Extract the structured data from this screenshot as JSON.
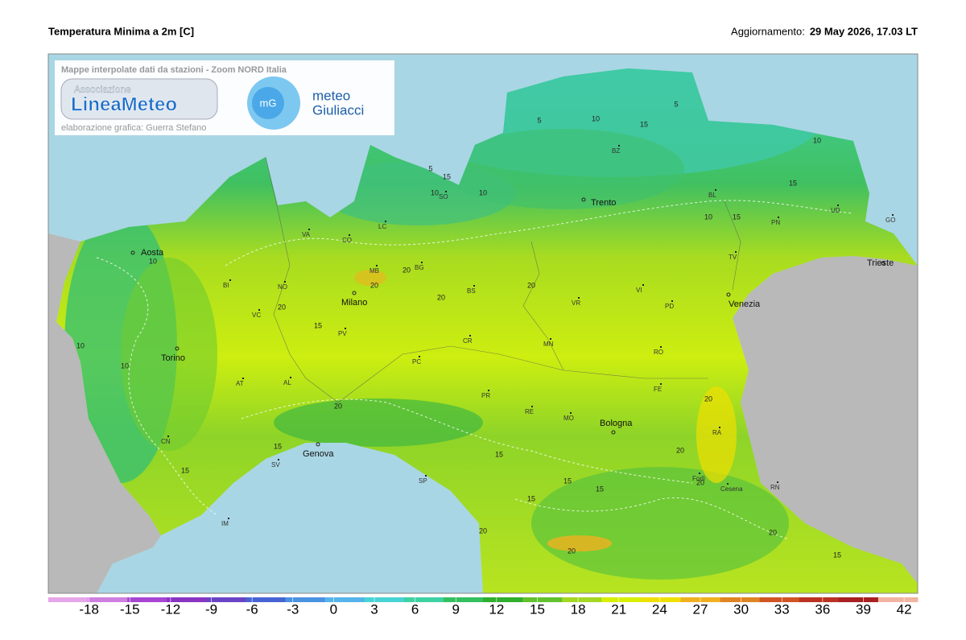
{
  "header": {
    "title": "Temperatura Minima a 2m [C]",
    "update_label": "Aggiornamento:",
    "update_time": "29 May 2026, 17.03 LT"
  },
  "info_box": {
    "caption": "Mappe interpolate dati da stazioni - Zoom NORD Italia",
    "assoc": "Associazione",
    "brand": "LineaMeteo",
    "credit": "elaborazione grafica: Guerra Stefano",
    "mg": "mG",
    "meteo": "meteo",
    "giuliacci": "Giuliacci"
  },
  "cities": [
    "Aosta",
    "Torino",
    "Milano",
    "Genova",
    "Trento",
    "Venezia",
    "Bologna",
    "Trieste"
  ],
  "provinces": [
    "BI",
    "NO",
    "VA",
    "CO",
    "LC",
    "SO",
    "BZ",
    "BL",
    "UD",
    "GO",
    "PN",
    "TV",
    "VI",
    "PD",
    "VR",
    "BS",
    "BG",
    "MB",
    "VC",
    "PV",
    "PC",
    "CR",
    "MN",
    "RO",
    "FE",
    "AT",
    "AL",
    "PR",
    "RE",
    "MO",
    "RA",
    "CN",
    "SV",
    "SP",
    "IM",
    "RN",
    "Forlì",
    "Cesena"
  ],
  "isoline_labels": [
    5,
    10,
    15,
    15,
    10,
    5,
    10,
    5,
    10,
    15,
    10,
    15,
    10,
    20,
    20,
    20,
    20,
    20,
    15,
    20,
    15,
    15,
    15,
    15,
    20,
    20,
    20,
    20,
    20,
    10,
    10,
    15,
    15,
    20,
    15
  ],
  "colorbar": {
    "lim": [
      -21,
      43
    ],
    "ticks": [
      -18,
      -15,
      -12,
      -9,
      -6,
      -3,
      0,
      3,
      6,
      9,
      12,
      15,
      18,
      21,
      24,
      27,
      30,
      33,
      36,
      39,
      42
    ],
    "colors": [
      "#e6a6ea",
      "#cf7fe0",
      "#a845d2",
      "#8a34c4",
      "#6a44c6",
      "#4864d4",
      "#4a92e2",
      "#55b4ea",
      "#48d4d4",
      "#3ed2a2",
      "#34c05e",
      "#30ae2e",
      "#62c22e",
      "#a4d822",
      "#d8f000",
      "#f0e000",
      "#f0b020",
      "#e08424",
      "#d05424",
      "#bc3222",
      "#a82020",
      "#f2b4a2"
    ]
  }
}
